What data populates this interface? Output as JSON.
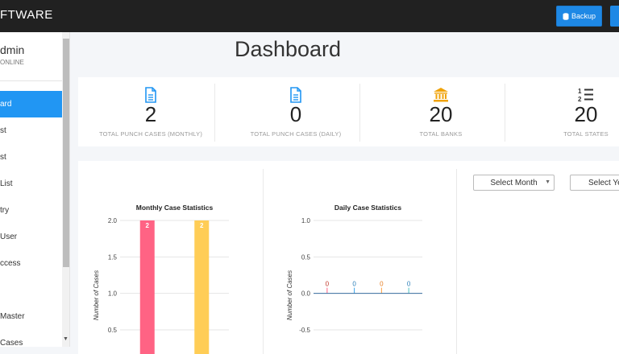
{
  "app": {
    "brand": "FTWARE"
  },
  "toolbar": {
    "backup_label": "Backup"
  },
  "user": {
    "name": "dmin",
    "status": "ONLINE"
  },
  "sidebar": {
    "items": [
      {
        "label": "ard",
        "active": true
      },
      {
        "label": "st"
      },
      {
        "label": "st"
      },
      {
        "label": "List"
      },
      {
        "label": "try"
      },
      {
        "label": "User"
      },
      {
        "label": "ccess"
      },
      {
        "label": "Master"
      },
      {
        "label": "Cases"
      }
    ]
  },
  "page": {
    "title": "Dashboard"
  },
  "stats": [
    {
      "icon": "document-icon",
      "value": "2",
      "label": "TOTAL PUNCH CASES (MONTHLY)",
      "color": "#2196f3"
    },
    {
      "icon": "document-icon",
      "value": "0",
      "label": "TOTAL PUNCH CASES (DAILY)",
      "color": "#2196f3"
    },
    {
      "icon": "bank-icon",
      "value": "20",
      "label": "TOTAL BANKS",
      "color": "#f0a30a"
    },
    {
      "icon": "ordered-list-icon",
      "value": "20",
      "label": "TOTAL STATES",
      "color": "#333333"
    }
  ],
  "filters": {
    "month": "Select Month",
    "year": "Select Ye"
  },
  "chart_data": [
    {
      "type": "bar",
      "title": "Monthly Case Statistics",
      "ylabel": "Number of Cases",
      "ylim": [
        0,
        2.0
      ],
      "yticks": [
        "2.0",
        "1.5",
        "1.0",
        "0.5"
      ],
      "categories": [
        "",
        ""
      ],
      "values": [
        2,
        2
      ],
      "data_labels": [
        "2",
        "2"
      ],
      "colors": [
        "#ff6384",
        "#ffcd56"
      ],
      "grid": true
    },
    {
      "type": "bar",
      "title": "Daily Case Statistics",
      "ylabel": "Number of Cases",
      "ylim": [
        -0.5,
        1.0
      ],
      "yticks": [
        "1.0",
        "0.5",
        "0.0",
        "-0.5"
      ],
      "categories": [
        "",
        "",
        "",
        ""
      ],
      "values": [
        0,
        0,
        0,
        0
      ],
      "data_labels": [
        "0",
        "0",
        "0",
        "0"
      ],
      "colors": [
        "#ff6384",
        "#36a2eb",
        "#ff9f40",
        "#4bc0c0"
      ],
      "label_colors": [
        "#c0392b",
        "#2c7fb8",
        "#e67e22",
        "#2c7fb8"
      ],
      "grid": true
    }
  ]
}
